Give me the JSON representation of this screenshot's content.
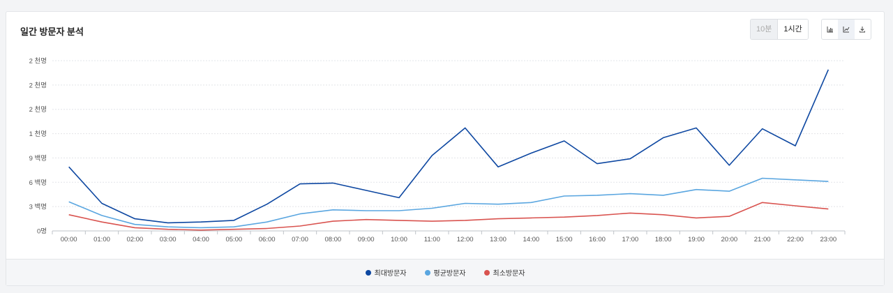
{
  "panel": {
    "title": "일간 방문자 분석"
  },
  "toolbar": {
    "interval_options": [
      "10분",
      "1시간"
    ],
    "selected_interval": "1시간",
    "icons": [
      "bar-chart-icon",
      "line-chart-icon",
      "download-icon"
    ],
    "active_icon": "line-chart-icon"
  },
  "chart_data": {
    "type": "line",
    "title": "일간 방문자 분석",
    "x": [
      "00:00",
      "01:00",
      "02:00",
      "03:00",
      "04:00",
      "05:00",
      "06:00",
      "07:00",
      "08:00",
      "09:00",
      "10:00",
      "11:00",
      "12:00",
      "13:00",
      "14:00",
      "15:00",
      "16:00",
      "17:00",
      "18:00",
      "19:00",
      "20:00",
      "21:00",
      "22:00",
      "23:00"
    ],
    "y_ticks": [
      0,
      3,
      6,
      9,
      12,
      15,
      18,
      21
    ],
    "y_tick_labels": [
      "0명",
      "3 백명",
      "6 백명",
      "9 백명",
      "1 천명",
      "2 천명",
      "2 천명",
      "2 천명"
    ],
    "ylim": [
      0,
      21
    ],
    "grid": true,
    "legend_position": "bottom",
    "series": [
      {
        "name": "최대방문자",
        "color": "#0d47a1",
        "values": [
          7.9,
          3.4,
          1.5,
          1.0,
          1.1,
          1.3,
          3.3,
          5.8,
          5.9,
          5.0,
          4.1,
          9.3,
          12.7,
          7.9,
          9.6,
          11.1,
          8.3,
          8.9,
          11.5,
          12.7,
          8.1,
          12.6,
          10.5,
          19.9
        ]
      },
      {
        "name": "평균방문자",
        "color": "#5aa6e0",
        "values": [
          3.6,
          1.9,
          0.8,
          0.5,
          0.4,
          0.5,
          1.1,
          2.1,
          2.6,
          2.5,
          2.5,
          2.8,
          3.4,
          3.3,
          3.5,
          4.3,
          4.4,
          4.6,
          4.4,
          5.1,
          4.9,
          6.5,
          6.3,
          6.1
        ]
      },
      {
        "name": "최소방문자",
        "color": "#d9534f",
        "values": [
          2.0,
          1.1,
          0.4,
          0.2,
          0.1,
          0.2,
          0.3,
          0.6,
          1.2,
          1.4,
          1.3,
          1.2,
          1.3,
          1.5,
          1.6,
          1.7,
          1.9,
          2.2,
          2.0,
          1.6,
          1.8,
          3.5,
          3.1,
          2.7
        ]
      }
    ]
  }
}
